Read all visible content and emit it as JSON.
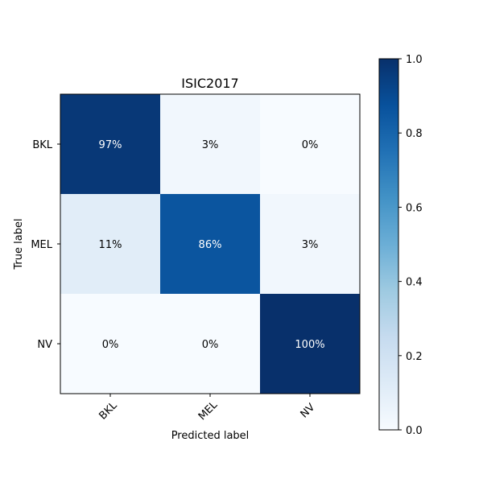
{
  "chart_data": {
    "type": "heatmap",
    "title": "ISIC2017",
    "xlabel": "Predicted label",
    "ylabel": "True label",
    "x_categories": [
      "BKL",
      "MEL",
      "NV"
    ],
    "y_categories": [
      "BKL",
      "MEL",
      "NV"
    ],
    "values": [
      [
        0.97,
        0.03,
        0.0
      ],
      [
        0.11,
        0.86,
        0.03
      ],
      [
        0.0,
        0.0,
        1.0
      ]
    ],
    "cell_labels": [
      [
        "97%",
        "3%",
        "0%"
      ],
      [
        "11%",
        "86%",
        "3%"
      ],
      [
        "0%",
        "0%",
        "100%"
      ]
    ],
    "colormap": "Blues",
    "colorbar": {
      "range": [
        0.0,
        1.0
      ],
      "ticks": [
        "0.0",
        "0.2",
        "0.4",
        "0.6",
        "0.8",
        "1.0"
      ]
    },
    "label_colors": {
      "light": "#ffffff",
      "dark": "#000000"
    },
    "grid": false
  }
}
